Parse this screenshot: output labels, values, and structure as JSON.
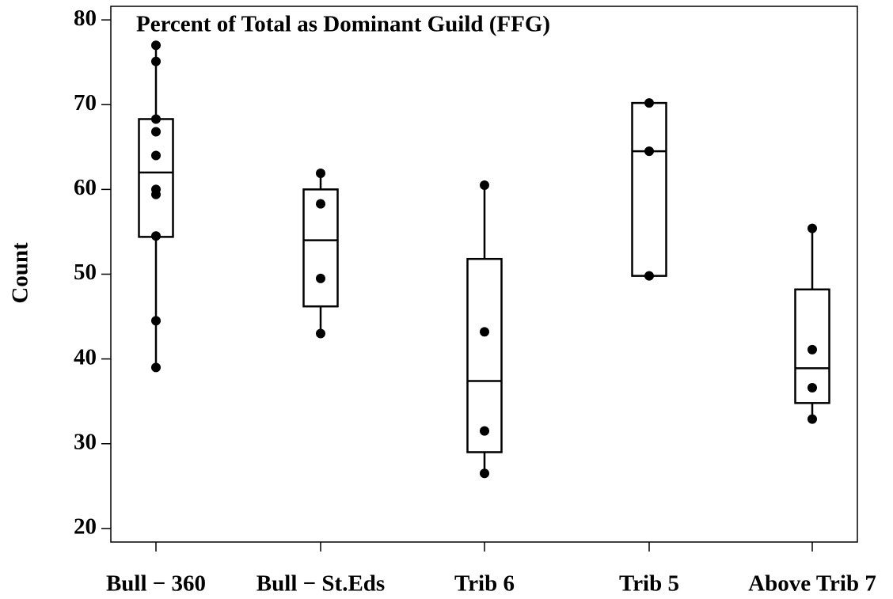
{
  "chart_data": {
    "type": "box",
    "title": "Percent of Total as Dominant Guild (FFG)",
    "y_label": "Count",
    "categories": [
      "Bull − 360",
      "Bull − St.Eds",
      "Trib 6",
      "Trib 5",
      "Above Trib 7"
    ],
    "boxes": [
      {
        "min": 39.0,
        "q1": 54.4,
        "median": 62.0,
        "q3": 68.3,
        "max": 77.0,
        "points": [
          77.0,
          75.1,
          68.3,
          66.8,
          64.0,
          60.0,
          59.4,
          54.5,
          44.5,
          39.0
        ]
      },
      {
        "min": 43.0,
        "q1": 46.2,
        "median": 54.0,
        "q3": 60.0,
        "max": 61.9,
        "points": [
          61.9,
          58.3,
          49.5,
          43.0
        ]
      },
      {
        "min": 26.5,
        "q1": 29.0,
        "median": 37.4,
        "q3": 51.8,
        "max": 60.5,
        "points": [
          60.5,
          43.2,
          31.5,
          26.5
        ]
      },
      {
        "min": 49.8,
        "q1": 49.8,
        "median": 64.5,
        "q3": 70.2,
        "max": 70.2,
        "points": [
          70.2,
          64.5,
          49.8
        ]
      },
      {
        "min": 32.9,
        "q1": 34.8,
        "median": 38.9,
        "q3": 48.2,
        "max": 55.4,
        "points": [
          55.4,
          41.1,
          36.6,
          32.9
        ]
      }
    ],
    "color": "#000000",
    "ylim": [
      18.4,
      81.6
    ],
    "yticks": [
      20,
      30,
      40,
      50,
      60,
      70,
      80
    ]
  }
}
